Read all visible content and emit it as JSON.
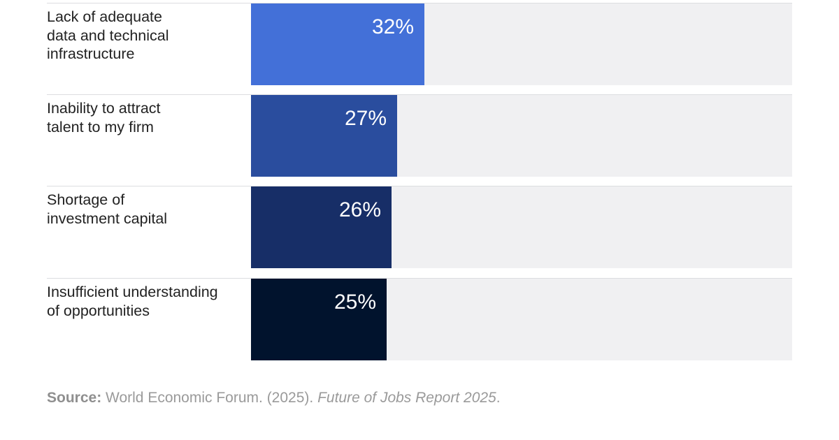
{
  "chart_data": {
    "type": "bar",
    "orientation": "horizontal",
    "categories": [
      "Lack of adequate\ndata and technical\ninfrastructure",
      "Inability to attract\ntalent to my firm",
      "Shortage of\ninvestment capital",
      "Insufficient understanding\nof opportunities"
    ],
    "values": [
      32,
      27,
      26,
      25
    ],
    "value_labels": [
      "32%",
      "27%",
      "26%",
      "25%"
    ],
    "bar_colors": [
      "#4370d8",
      "#2a4d9e",
      "#172e67",
      "#01132d"
    ],
    "track_color": "#f0f0f2",
    "xlim": [
      0,
      100
    ],
    "unit": "%",
    "grid": false,
    "legend": "none"
  },
  "source": {
    "label": "Source:",
    "text": " World Economic Forum. (2025). ",
    "title": "Future of Jobs Report 2025",
    "end": "."
  }
}
